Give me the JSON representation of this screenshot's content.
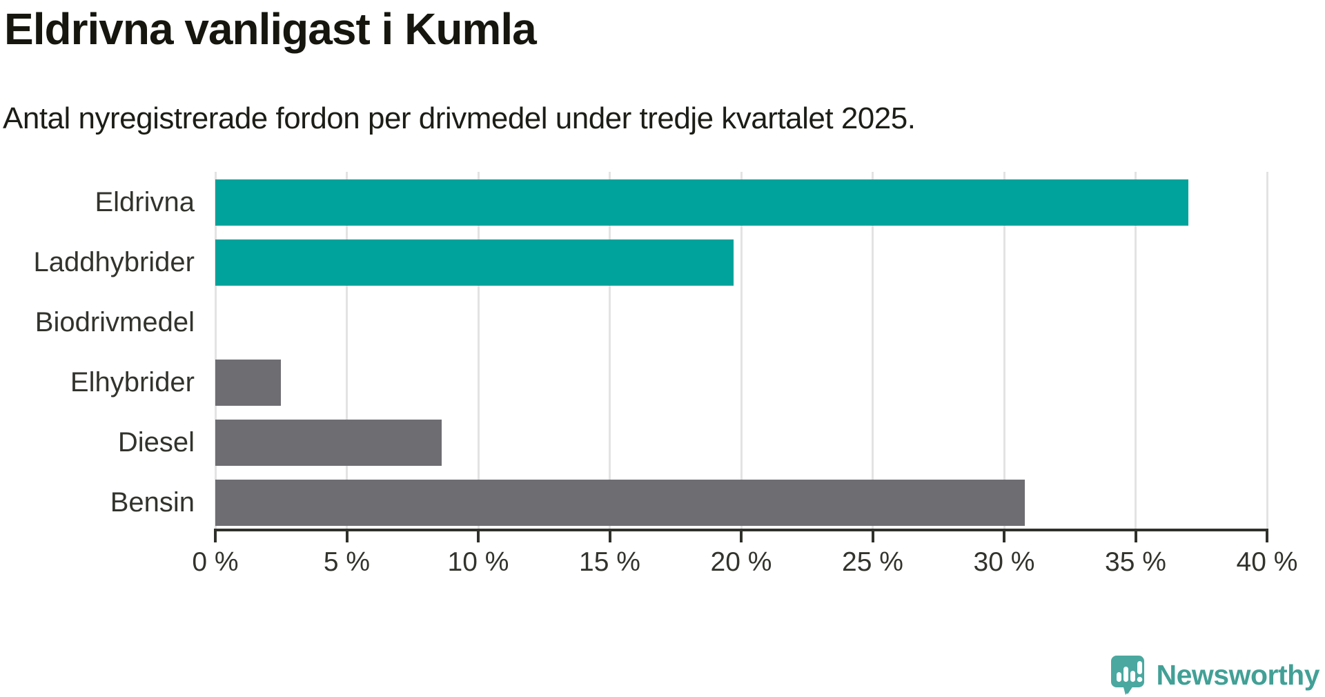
{
  "chart_data": {
    "type": "bar",
    "orientation": "horizontal",
    "title": "Eldrivna vanligast i Kumla",
    "subtitle": "Antal nyregistrerade fordon per drivmedel under tredje kvartalet 2025.",
    "categories": [
      "Eldrivna",
      "Laddhybrider",
      "Biodrivmedel",
      "Elhybrider",
      "Diesel",
      "Bensin"
    ],
    "values": [
      37,
      19.7,
      0,
      2.5,
      8.6,
      30.8
    ],
    "unit": "%",
    "bar_colors": [
      "#00a39b",
      "#00a39b",
      "#6d6d72",
      "#6d6d72",
      "#6d6d72",
      "#6d6d72"
    ],
    "accent_color": "#00a39b",
    "neutral_color": "#6d6d72",
    "xlim": [
      0,
      40
    ],
    "x_ticks": [
      0,
      5,
      10,
      15,
      20,
      25,
      30,
      35,
      40
    ],
    "x_tick_labels": [
      "0 %",
      "5 %",
      "10 %",
      "15 %",
      "20 %",
      "25 %",
      "30 %",
      "35 %",
      "40 %"
    ],
    "xlabel": "",
    "ylabel": "",
    "grid": "vertical",
    "legend": "none"
  },
  "branding": {
    "logo_text": "Newsworthy",
    "logo_color": "#42a096",
    "logo_icon": "speech-bubble-chart-icon"
  }
}
